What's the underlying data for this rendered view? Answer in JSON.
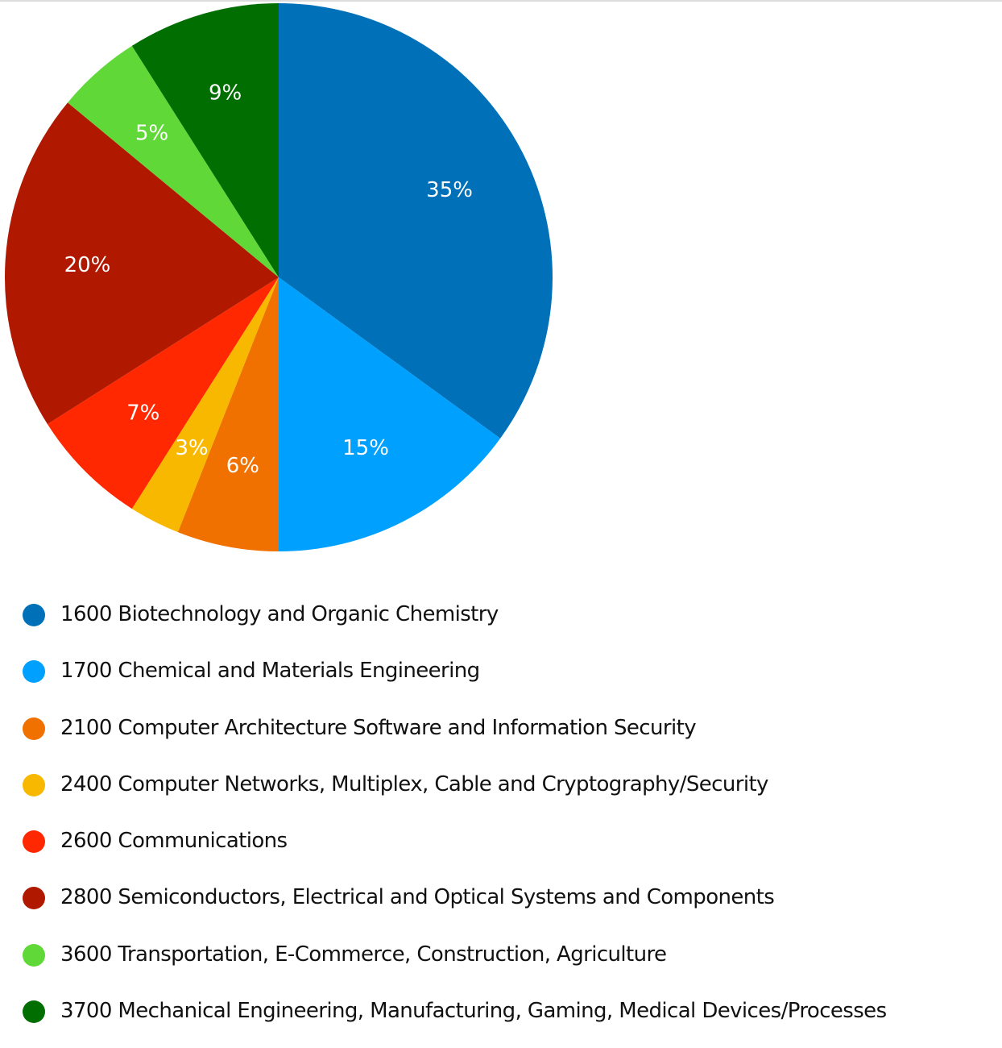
{
  "chart_data": {
    "type": "pie",
    "title": "",
    "legend_position": "bottom",
    "slices": [
      {
        "label": "1600 Biotechnology and Organic Chemistry",
        "value": 35,
        "display": "35%",
        "color": "#0071b8"
      },
      {
        "label": "1700 Chemical and Materials Engineering",
        "value": 15,
        "display": "15%",
        "color": "#00a0ff"
      },
      {
        "label": "2100 Computer Architecture Software and Information Security",
        "value": 6,
        "display": "6%",
        "color": "#f07000"
      },
      {
        "label": "2400 Computer Networks, Multiplex, Cable and Cryptography/Security",
        "value": 3,
        "display": "3%",
        "color": "#f8b800"
      },
      {
        "label": "2600 Communications",
        "value": 7,
        "display": "7%",
        "color": "#ff2800"
      },
      {
        "label": "2800 Semiconductors, Electrical and Optical Systems and Components",
        "value": 20,
        "display": "20%",
        "color": "#b01800"
      },
      {
        "label": "3600 Transportation, E-Commerce, Construction, Agriculture",
        "value": 5,
        "display": "5%",
        "color": "#60d838"
      },
      {
        "label": "3700 Mechanical Engineering, Manufacturing, Gaming, Medical Devices/Processes",
        "value": 9,
        "display": "9%",
        "color": "#006e00"
      }
    ]
  }
}
